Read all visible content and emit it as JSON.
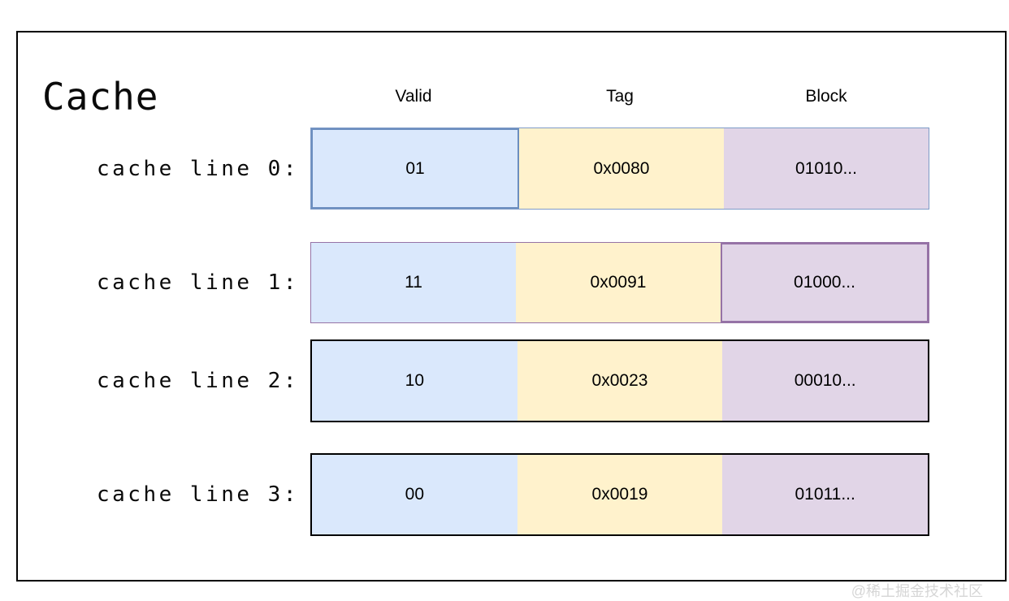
{
  "title": "Cache",
  "columns": [
    {
      "label": "Valid"
    },
    {
      "label": "Tag"
    },
    {
      "label": "Block"
    }
  ],
  "rows": [
    {
      "label": "cache line 0:",
      "valid": "01",
      "tag": "0x0080",
      "block": "01010...",
      "highlight": "valid"
    },
    {
      "label": "cache line 1:",
      "valid": "11",
      "tag": "0x0091",
      "block": "01000...",
      "highlight": "block"
    },
    {
      "label": "cache line 2:",
      "valid": "10",
      "tag": "0x0023",
      "block": "00010...",
      "highlight": "none"
    },
    {
      "label": "cache line 3:",
      "valid": "00",
      "tag": "0x0019",
      "block": "01011...",
      "highlight": "none"
    }
  ],
  "colors": {
    "valid_cell_fill": "#dae8fc",
    "valid_cell_stroke": "#6c8ebf",
    "tag_cell_fill": "#fff2cc",
    "block_cell_fill": "#e1d5e7",
    "block_cell_stroke": "#9673a6",
    "plain_row_border": "#000000"
  },
  "watermark": "@稀土掘金技术社区"
}
